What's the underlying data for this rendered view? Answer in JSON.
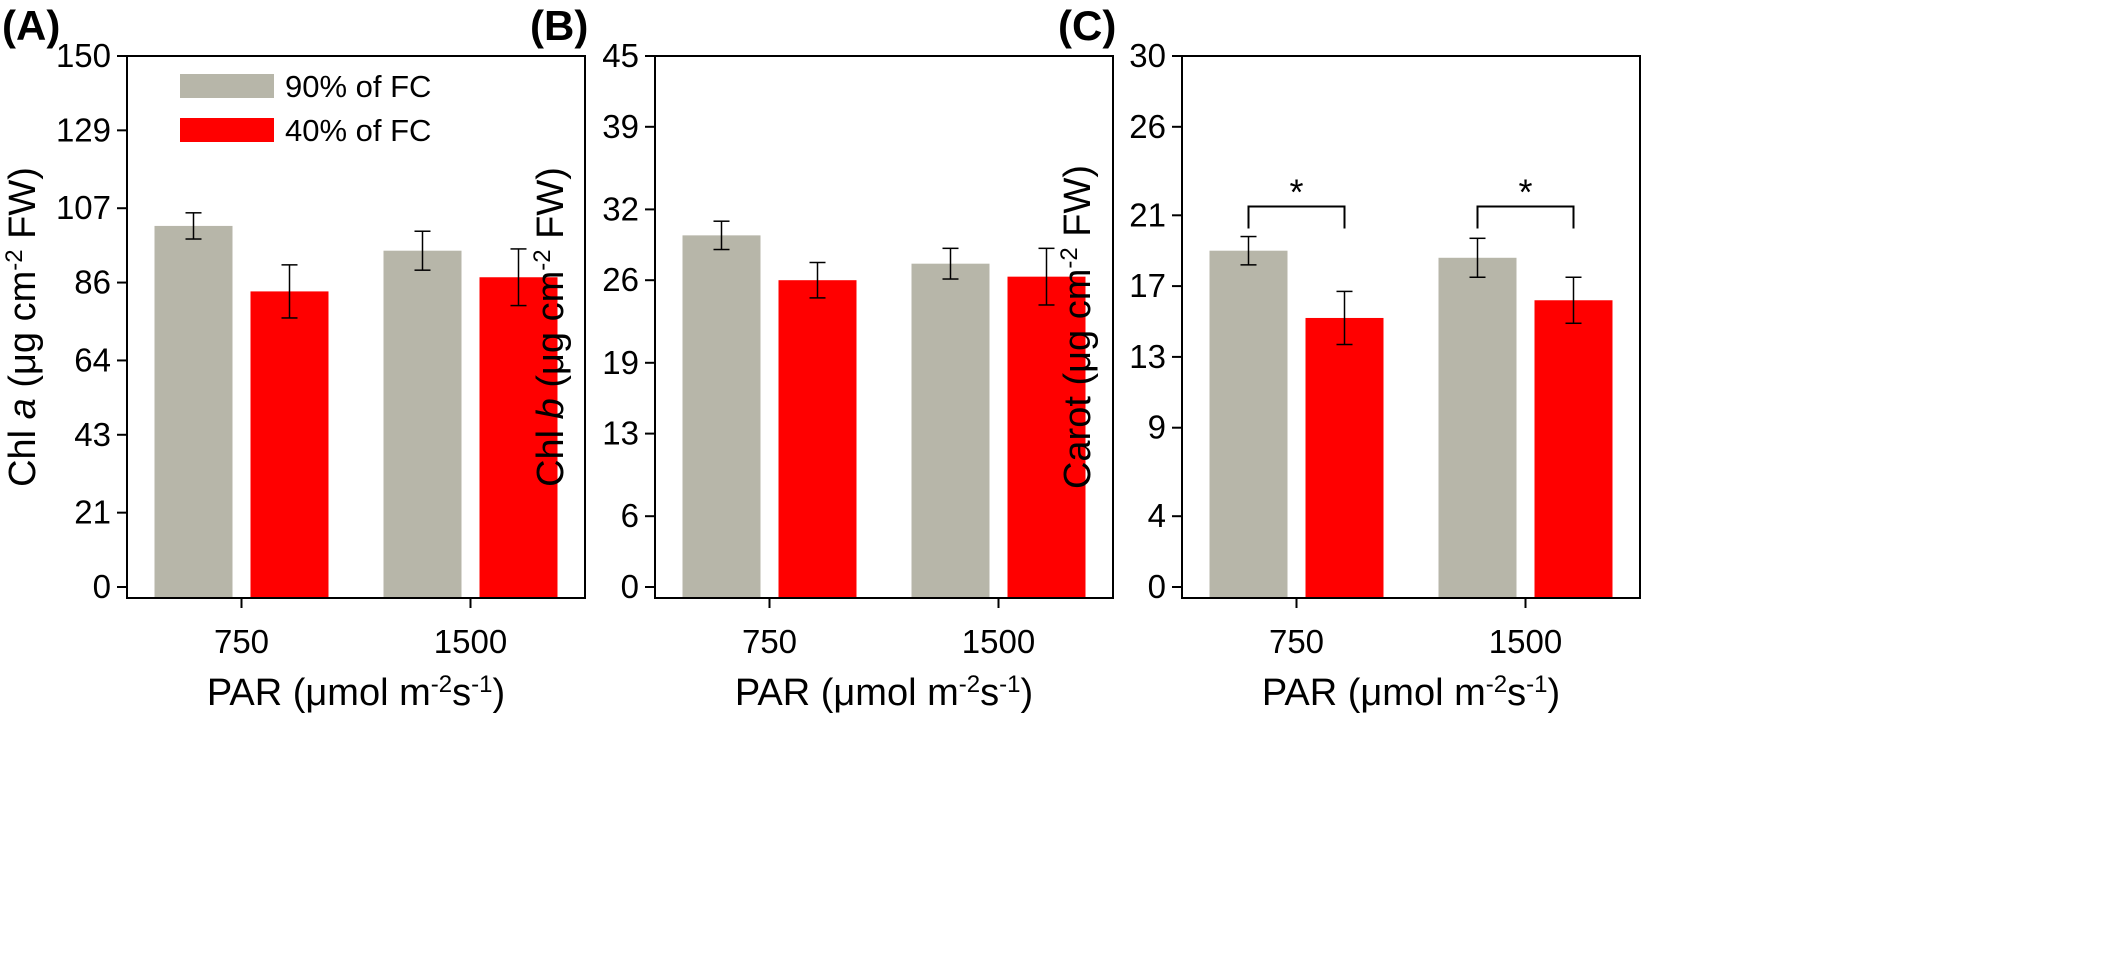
{
  "colors": {
    "well_watered": "#b7b6a9",
    "drought": "#ff0000",
    "axis": "#000000"
  },
  "chart_data": [
    {
      "type": "bar",
      "panel_label": "(A)",
      "ylabel_parts": [
        {
          "t": "Chl ",
          "style": "normal",
          "sup": false
        },
        {
          "t": "a",
          "style": "italic",
          "sup": false
        },
        {
          "t": " (μg cm",
          "style": "normal",
          "sup": false
        },
        {
          "t": "-2",
          "style": "normal",
          "sup": true
        },
        {
          "t": " FW)",
          "style": "normal",
          "sup": false
        }
      ],
      "xlabel_parts": [
        {
          "t": "PAR (μmol m",
          "sup": false
        },
        {
          "t": "-2",
          "sup": true
        },
        {
          "t": "s",
          "sup": false
        },
        {
          "t": "-1",
          "sup": true
        },
        {
          "t": ")",
          "sup": false
        }
      ],
      "categories": [
        "750",
        "1500"
      ],
      "ylim": [
        0,
        150
      ],
      "yticks": [
        0,
        21,
        43,
        64,
        86,
        107,
        129,
        150
      ],
      "series": [
        {
          "name": "90% of FC",
          "color": "#b7b6a9",
          "values": [
            102,
            95
          ],
          "errors": [
            3.7,
            5.5
          ]
        },
        {
          "name": "40% of FC",
          "color": "#ff0000",
          "values": [
            83.5,
            87.5
          ],
          "errors": [
            7.5,
            8
          ]
        }
      ],
      "legend": {
        "position": "top-left",
        "entries": [
          "90% of FC",
          "40% of FC"
        ]
      },
      "significance": []
    },
    {
      "type": "bar",
      "panel_label": "(B)",
      "ylabel_parts": [
        {
          "t": "Chl ",
          "style": "normal",
          "sup": false
        },
        {
          "t": "b",
          "style": "italic",
          "sup": false
        },
        {
          "t": " (μg cm",
          "style": "normal",
          "sup": false
        },
        {
          "t": "-2",
          "style": "normal",
          "sup": true
        },
        {
          "t": " FW)",
          "style": "normal",
          "sup": false
        }
      ],
      "xlabel_parts": [
        {
          "t": "PAR (μmol m",
          "sup": false
        },
        {
          "t": "-2",
          "sup": true
        },
        {
          "t": "s",
          "sup": false
        },
        {
          "t": "-1",
          "sup": true
        },
        {
          "t": ")",
          "sup": false
        }
      ],
      "categories": [
        "750",
        "1500"
      ],
      "ylim": [
        0,
        45
      ],
      "yticks": [
        0,
        6,
        13,
        19,
        26,
        32,
        39,
        45
      ],
      "series": [
        {
          "name": "90% of FC",
          "color": "#b7b6a9",
          "values": [
            29.8,
            27.4
          ],
          "errors": [
            1.2,
            1.3
          ]
        },
        {
          "name": "40% of FC",
          "color": "#ff0000",
          "values": [
            26,
            26.3
          ],
          "errors": [
            1.5,
            2.4
          ]
        }
      ],
      "significance": []
    },
    {
      "type": "bar",
      "panel_label": "(C)",
      "ylabel_parts": [
        {
          "t": "Carot (μg cm",
          "style": "normal",
          "sup": false
        },
        {
          "t": "-2",
          "style": "normal",
          "sup": true
        },
        {
          "t": " FW)",
          "style": "normal",
          "sup": false
        }
      ],
      "xlabel_parts": [
        {
          "t": "PAR (μmol m",
          "sup": false
        },
        {
          "t": "-2",
          "sup": true
        },
        {
          "t": "s",
          "sup": false
        },
        {
          "t": "-1",
          "sup": true
        },
        {
          "t": ")",
          "sup": false
        }
      ],
      "categories": [
        "750",
        "1500"
      ],
      "ylim": [
        0,
        30
      ],
      "yticks": [
        0,
        4,
        9,
        13,
        17,
        21,
        26,
        30
      ],
      "series": [
        {
          "name": "90% of FC",
          "color": "#b7b6a9",
          "values": [
            19,
            18.6
          ],
          "errors": [
            0.8,
            1.1
          ]
        },
        {
          "name": "40% of FC",
          "color": "#ff0000",
          "values": [
            15.2,
            16.2
          ],
          "errors": [
            1.5,
            1.3
          ]
        }
      ],
      "significance": [
        {
          "category_index": 0,
          "label": "*",
          "y": 21.5
        },
        {
          "category_index": 1,
          "label": "*",
          "y": 21.5
        }
      ]
    }
  ]
}
